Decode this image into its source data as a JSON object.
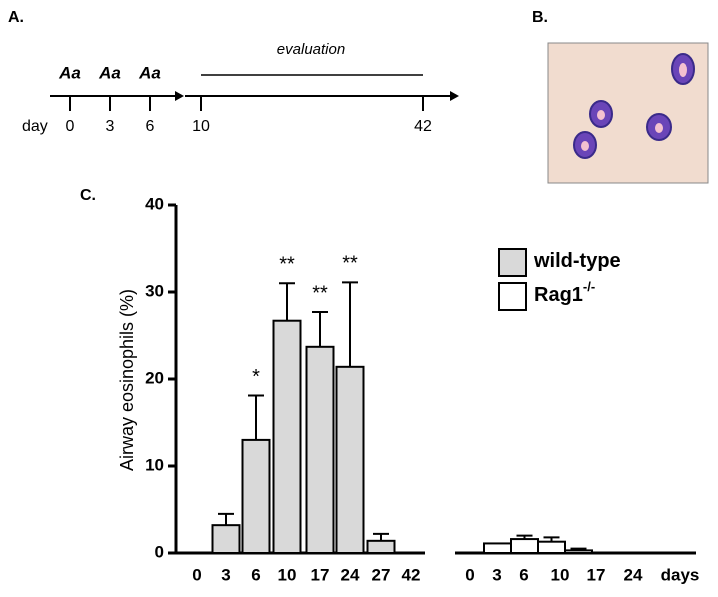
{
  "panels": {
    "a": "A.",
    "b": "B.",
    "c": "C."
  },
  "timeline": {
    "doses": [
      "Aa",
      "Aa",
      "Aa"
    ],
    "day_label": "day",
    "days": [
      0,
      3,
      6,
      10,
      42
    ],
    "evaluation": "evaluation"
  },
  "chart_data": {
    "type": "bar",
    "ylabel": "Airway eosinophils (%)",
    "ylim": [
      0,
      40
    ],
    "yticks": [
      0,
      10,
      20,
      30,
      40
    ],
    "x_unit": "days",
    "series": [
      {
        "name": "wild-type",
        "color": "#d9d9d9",
        "categories": [
          "0",
          "3",
          "6",
          "10",
          "17",
          "24",
          "27",
          "42"
        ],
        "values": [
          0,
          3.2,
          13,
          26.7,
          23.7,
          21.4,
          1.4,
          0
        ],
        "errors": [
          null,
          1.3,
          5.1,
          4.3,
          4,
          9.7,
          0.8,
          null
        ],
        "annotations": [
          null,
          null,
          "*",
          "**",
          "**",
          "**",
          null,
          null
        ]
      },
      {
        "name": "Rag1",
        "name_superscript": "-/-",
        "color": "#ffffff",
        "categories": [
          "0",
          "3",
          "6",
          "10",
          "17",
          "24"
        ],
        "values": [
          0,
          1.1,
          1.6,
          1.3,
          0.3,
          0
        ],
        "errors": [
          null,
          null,
          0.4,
          0.5,
          0.2,
          null
        ],
        "annotations": [
          null,
          null,
          null,
          null,
          null,
          null
        ]
      }
    ]
  }
}
